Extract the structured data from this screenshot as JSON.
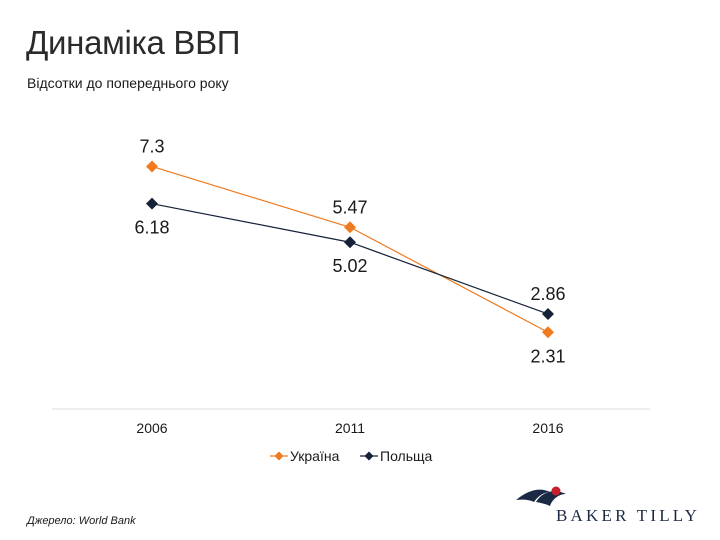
{
  "title": "Динаміка ВВП",
  "subtitle": "Відсотки до попереднього року",
  "source": "Джерело: World Bank",
  "logo": {
    "name": "baker-tilly-logo-icon",
    "text": "BAKER TILLY",
    "color": "#1b2a44"
  },
  "chart_data": {
    "type": "line",
    "title": "",
    "xlabel": "",
    "ylabel": "",
    "categories": [
      "2006",
      "2011",
      "2016"
    ],
    "ylim": [
      0,
      9
    ],
    "grid": false,
    "legend": "bottom",
    "series": [
      {
        "name": "Україна",
        "values": [
          7.3,
          5.47,
          2.31
        ],
        "labels": [
          "7.3",
          "5.47",
          "2.31"
        ],
        "color": "#f07a1e",
        "marker": "diamond"
      },
      {
        "name": "Польща",
        "values": [
          6.18,
          5.02,
          2.86
        ],
        "labels": [
          "6.18",
          "5.02",
          "2.86"
        ],
        "color": "#152238",
        "marker": "diamond"
      }
    ]
  }
}
